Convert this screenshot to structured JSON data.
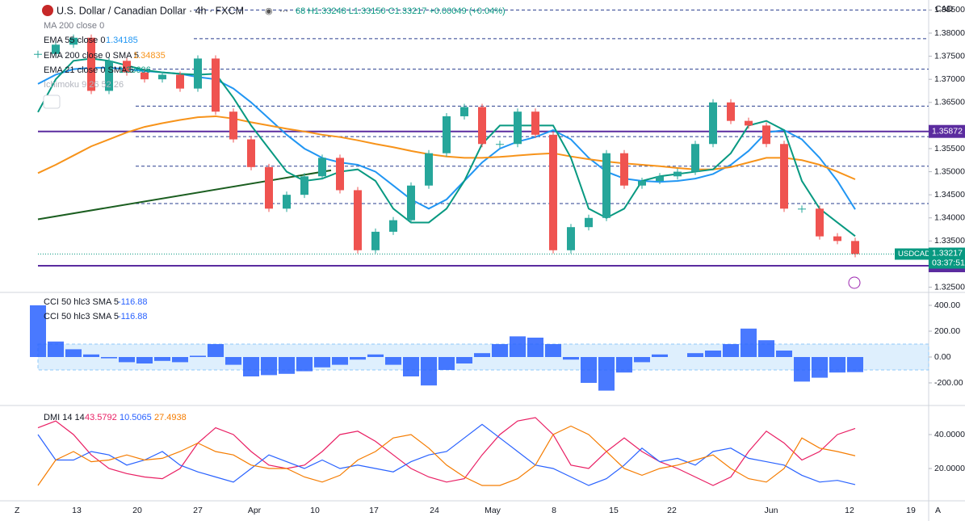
{
  "header": {
    "title": "U.S. Dollar / Canadian Dollar · 4h · FXCM",
    "open_fragment": "68",
    "ohlc": "H1.33248 L1.33150 C1.33217 +0.00049 (+0.04%)",
    "currency": "CAD",
    "legend_extra": [
      "MA 200 close 0",
      "Ichimoku 9 26 52 26"
    ],
    "countdown": "03:37:51",
    "time_labels": [
      "13",
      "20",
      "27",
      "Apr",
      "10",
      "17",
      "24",
      "May",
      "8",
      "15",
      "22",
      "Jun",
      "12",
      "19"
    ]
  },
  "chart_data": [
    {
      "type": "candlestick",
      "ylim": [
        1.32387,
        1.38717
      ],
      "yticks": [
        {
          "value": 1.385,
          "label": "1.38500"
        },
        {
          "value": 1.38,
          "label": "1.38000"
        },
        {
          "value": 1.375,
          "label": "1.37500"
        },
        {
          "value": 1.37,
          "label": "1.37000"
        },
        {
          "value": 1.365,
          "label": "1.36500"
        },
        {
          "value": 1.355,
          "label": "1.35500"
        },
        {
          "value": 1.35,
          "label": "1.35000"
        },
        {
          "value": 1.345,
          "label": "1.34500"
        },
        {
          "value": 1.34,
          "label": "1.34000"
        },
        {
          "value": 1.335,
          "label": "1.33500"
        },
        {
          "value": 1.325,
          "label": "1.32500"
        }
      ],
      "hlines": [
        {
          "value": 1.35872,
          "color": "#5b2c9f"
        },
        {
          "value": 1.32964,
          "color": "#5b2c9f"
        }
      ],
      "levels": [
        1.385,
        1.3788,
        1.3722,
        1.3642,
        1.3576,
        1.3512,
        1.3431
      ],
      "trendline": [
        1.3397,
        1.3503
      ],
      "series": [
        {
          "name": "USDCAD",
          "color": "#089981",
          "values": [
            1.3755,
            1.3775,
            1.379,
            1.3675,
            1.374,
            1.3715,
            1.37,
            1.371,
            1.368,
            1.3745,
            1.363,
            1.357,
            1.351,
            1.342,
            1.345,
            1.349,
            1.353,
            1.346,
            1.333,
            1.337,
            1.3395,
            1.347,
            1.354,
            1.362,
            1.364,
            1.356,
            1.356,
            1.363,
            1.358,
            1.333,
            1.338,
            1.34,
            1.354,
            1.347,
            1.348,
            1.349,
            1.35,
            1.356,
            1.365,
            1.361,
            1.36,
            1.356,
            1.342,
            1.342,
            1.336,
            1.335,
            1.33217
          ]
        },
        {
          "name": "EMA 55 close 0",
          "color": "#2196f3",
          "values": [
            1.369,
            1.371,
            1.3722,
            1.3725,
            1.3725,
            1.3722,
            1.3718,
            1.3715,
            1.3712,
            1.3705,
            1.37,
            1.368,
            1.365,
            1.3615,
            1.358,
            1.355,
            1.353,
            1.352,
            1.3515,
            1.35,
            1.347,
            1.344,
            1.342,
            1.344,
            1.348,
            1.352,
            1.355,
            1.3565,
            1.3575,
            1.359,
            1.357,
            1.353,
            1.35,
            1.3485,
            1.348,
            1.3478,
            1.348,
            1.3485,
            1.3495,
            1.3515,
            1.3545,
            1.3585,
            1.359,
            1.357,
            1.353,
            1.348,
            1.34185
          ]
        },
        {
          "name": "EMA 200 close 0 SMA 5",
          "color": "#f7931a",
          "values": [
            1.3497,
            1.3515,
            1.3535,
            1.3555,
            1.357,
            1.3585,
            1.3597,
            1.3605,
            1.3612,
            1.3618,
            1.362,
            1.3615,
            1.3607,
            1.36,
            1.3593,
            1.3587,
            1.358,
            1.3575,
            1.3568,
            1.356,
            1.3553,
            1.3545,
            1.3538,
            1.3533,
            1.353,
            1.353,
            1.3532,
            1.3535,
            1.3538,
            1.354,
            1.3533,
            1.3527,
            1.3522,
            1.3518,
            1.3515,
            1.3512,
            1.3508,
            1.3505,
            1.3505,
            1.351,
            1.352,
            1.353,
            1.353,
            1.3525,
            1.3515,
            1.35,
            1.34835
          ]
        },
        {
          "name": "EMA 21 close 0 SMA 5",
          "color": "#089981",
          "values": [
            1.3629,
            1.37,
            1.374,
            1.3745,
            1.374,
            1.373,
            1.372,
            1.3715,
            1.3712,
            1.371,
            1.3712,
            1.366,
            1.36,
            1.355,
            1.35,
            1.348,
            1.3485,
            1.35,
            1.3505,
            1.348,
            1.342,
            1.339,
            1.339,
            1.342,
            1.348,
            1.356,
            1.36,
            1.36,
            1.36,
            1.36,
            1.353,
            1.342,
            1.34,
            1.342,
            1.348,
            1.349,
            1.3495,
            1.35,
            1.3505,
            1.354,
            1.36,
            1.361,
            1.359,
            1.348,
            1.342,
            1.339,
            1.33606
          ]
        }
      ]
    },
    {
      "type": "bar",
      "title": "CCI 50 hlc3 SMA 5",
      "color": "#2962ff",
      "band": [
        -100,
        100
      ],
      "ylim": [
        -362.5,
        481.25
      ],
      "yticks": [
        {
          "value": 400,
          "label": "400.00"
        },
        {
          "value": 200,
          "label": "200.00"
        },
        {
          "value": 0,
          "label": "0.00"
        },
        {
          "value": -200,
          "label": "-200.00"
        }
      ],
      "values": [
        400,
        120,
        60,
        20,
        -10,
        -40,
        -50,
        -30,
        -40,
        10,
        100,
        -60,
        -150,
        -140,
        -130,
        -110,
        -80,
        -60,
        -20,
        20,
        -60,
        -150,
        -220,
        -100,
        -50,
        30,
        100,
        160,
        150,
        100,
        -20,
        -200,
        -260,
        -120,
        -40,
        20,
        0,
        30,
        50,
        100,
        220,
        130,
        50,
        -190,
        -160,
        -120,
        -116.88
      ]
    },
    {
      "type": "line",
      "title": "DMI 14 14",
      "ylim": [
        0.95,
        55.71
      ],
      "yticks": [
        {
          "value": 40,
          "label": "40.0000"
        },
        {
          "value": 20,
          "label": "20.0000"
        }
      ],
      "series": [
        {
          "color": "#e91e63",
          "values": [
            44,
            48,
            40,
            28,
            20,
            17,
            15,
            14,
            20,
            35,
            44,
            40,
            30,
            22,
            20,
            22,
            30,
            40,
            42,
            36,
            28,
            20,
            15,
            12,
            14,
            28,
            40,
            48,
            50,
            40,
            22,
            20,
            30,
            38,
            30,
            24,
            20,
            15,
            10,
            15,
            30,
            42,
            35,
            25,
            30,
            40,
            43.5792
          ]
        },
        {
          "color": "#2962ff",
          "values": [
            40,
            25,
            25,
            30,
            28,
            22,
            25,
            30,
            22,
            18,
            15,
            12,
            20,
            28,
            24,
            20,
            25,
            20,
            22,
            20,
            18,
            24,
            28,
            30,
            38,
            46,
            38,
            30,
            22,
            20,
            15,
            10,
            14,
            22,
            32,
            24,
            26,
            22,
            30,
            32,
            26,
            24,
            22,
            16,
            12,
            13,
            10.5065
          ]
        },
        {
          "color": "#f57c00",
          "values": [
            10,
            25,
            30,
            24,
            25,
            28,
            25,
            26,
            30,
            35,
            30,
            28,
            22,
            20,
            20,
            15,
            12,
            16,
            25,
            30,
            38,
            40,
            32,
            22,
            15,
            10,
            10,
            14,
            22,
            40,
            45,
            40,
            30,
            20,
            16,
            20,
            22,
            25,
            28,
            20,
            14,
            12,
            20,
            38,
            32,
            30,
            27.4938
          ]
        }
      ]
    }
  ]
}
